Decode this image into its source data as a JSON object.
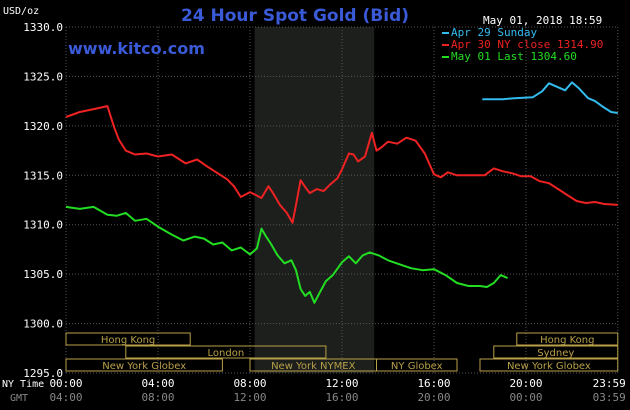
{
  "chart_data": {
    "type": "line",
    "title": "24 Hour Spot Gold (Bid)",
    "subtitle": "www.kitco.com",
    "timestamp": "May 01, 2018 18:59",
    "y_unit_label": "USD/oz",
    "ylim": [
      1295,
      1330
    ],
    "y_ticks": [
      "1330.0",
      "1325.0",
      "1320.0",
      "1315.0",
      "1310.0",
      "1305.0",
      "1300.0",
      "1295.0"
    ],
    "x_axis_label_ny": "NY Time",
    "x_axis_label_gmt": "GMT",
    "x_ticks_ny": [
      "00:00",
      "04:00",
      "08:00",
      "12:00",
      "16:00",
      "20:00",
      "23:59"
    ],
    "x_ticks_gmt": [
      "04:00",
      "08:00",
      "12:00",
      "16:00",
      "20:00",
      "00:00",
      "03:59"
    ],
    "shaded_region_hours": [
      8.2,
      13.4
    ],
    "legend_position": "top-right",
    "colors": {
      "background": "#000000",
      "grid": "#555555",
      "title": "#3a5ad8",
      "url": "#3a5ad8",
      "shade": "#1c1f1c",
      "session_box": "#b8a048"
    },
    "series": [
      {
        "name": "Apr 29 Sunday",
        "color": "#33bbee",
        "x": [
          18.1,
          19.0,
          19.5,
          20.3,
          20.7,
          21.0,
          21.3,
          21.7,
          22.0,
          22.3,
          22.7,
          23.0,
          23.3,
          23.7,
          23.99
        ],
        "y": [
          1322.7,
          1322.7,
          1322.8,
          1322.9,
          1323.5,
          1324.3,
          1324.0,
          1323.6,
          1324.4,
          1323.8,
          1322.8,
          1322.5,
          1322.0,
          1321.4,
          1321.3
        ]
      },
      {
        "name": "Apr 30 NY close 1314.90",
        "color": "#ee2222",
        "x": [
          0.0,
          0.6,
          1.2,
          1.8,
          2.1,
          2.3,
          2.6,
          3.0,
          3.5,
          4.0,
          4.6,
          5.2,
          5.7,
          6.2,
          6.6,
          7.0,
          7.3,
          7.6,
          8.0,
          8.5,
          8.8,
          9.0,
          9.3,
          9.6,
          9.85,
          10.0,
          10.2,
          10.4,
          10.6,
          10.9,
          11.2,
          11.5,
          11.8,
          12.0,
          12.3,
          12.5,
          12.7,
          13.0,
          13.3,
          13.5,
          13.7,
          14.0,
          14.4,
          14.8,
          15.2,
          15.6,
          16.0,
          16.3,
          16.6,
          17.0,
          17.4,
          17.8,
          18.2,
          18.6,
          19.0,
          19.4,
          19.8,
          20.2,
          20.6,
          21.0,
          21.4,
          21.8,
          22.2,
          22.6,
          23.0,
          23.4,
          23.99
        ],
        "y": [
          1320.9,
          1321.4,
          1321.7,
          1322.0,
          1319.8,
          1318.6,
          1317.5,
          1317.1,
          1317.2,
          1316.9,
          1317.1,
          1316.2,
          1316.6,
          1315.8,
          1315.2,
          1314.6,
          1313.9,
          1312.8,
          1313.3,
          1312.7,
          1313.9,
          1313.2,
          1312.0,
          1311.2,
          1310.2,
          1312.0,
          1314.5,
          1313.8,
          1313.2,
          1313.6,
          1313.4,
          1314.1,
          1314.7,
          1315.6,
          1317.2,
          1317.1,
          1316.4,
          1316.9,
          1319.3,
          1317.5,
          1317.8,
          1318.4,
          1318.2,
          1318.8,
          1318.5,
          1317.2,
          1315.1,
          1314.8,
          1315.3,
          1315.0,
          1315.0,
          1315.0,
          1315.0,
          1315.7,
          1315.4,
          1315.2,
          1314.9,
          1314.9,
          1314.4,
          1314.2,
          1313.6,
          1313.0,
          1312.4,
          1312.2,
          1312.3,
          1312.1,
          1312.0
        ]
      },
      {
        "name": "May 01 Last 1304.60",
        "color": "#22dd22",
        "x": [
          0.0,
          0.6,
          1.2,
          1.8,
          2.2,
          2.6,
          3.0,
          3.5,
          4.0,
          4.6,
          5.1,
          5.6,
          6.0,
          6.4,
          6.8,
          7.2,
          7.6,
          8.0,
          8.3,
          8.5,
          8.7,
          8.9,
          9.2,
          9.5,
          9.8,
          10.0,
          10.2,
          10.4,
          10.6,
          10.8,
          11.0,
          11.3,
          11.6,
          12.0,
          12.3,
          12.6,
          12.9,
          13.2,
          13.6,
          14.0,
          14.5,
          15.0,
          15.5,
          16.0,
          16.5,
          17.0,
          17.5,
          18.0,
          18.3,
          18.6,
          18.9,
          19.2
        ],
        "y": [
          1311.8,
          1311.6,
          1311.8,
          1311.0,
          1310.9,
          1311.2,
          1310.4,
          1310.6,
          1309.8,
          1309.0,
          1308.4,
          1308.8,
          1308.6,
          1308.0,
          1308.2,
          1307.4,
          1307.7,
          1307.0,
          1307.6,
          1309.6,
          1308.8,
          1308.1,
          1306.9,
          1306.1,
          1306.4,
          1305.4,
          1303.5,
          1302.8,
          1303.2,
          1302.1,
          1303.0,
          1304.3,
          1304.9,
          1306.2,
          1306.8,
          1306.1,
          1306.9,
          1307.2,
          1306.9,
          1306.4,
          1306.0,
          1305.6,
          1305.4,
          1305.5,
          1304.9,
          1304.1,
          1303.8,
          1303.8,
          1303.7,
          1304.1,
          1304.9,
          1304.6
        ]
      }
    ],
    "sessions": [
      {
        "name": "Hong Kong",
        "start": 0.0,
        "end": 5.4,
        "row": 0
      },
      {
        "name": "Hong Kong",
        "start": 19.6,
        "end": 23.99,
        "row": 0
      },
      {
        "name": "London",
        "start": 2.6,
        "end": 11.3,
        "row": 1
      },
      {
        "name": "Sydney",
        "start": 18.6,
        "end": 23.99,
        "row": 1
      },
      {
        "name": "New York Globex",
        "start": 0.0,
        "end": 6.8,
        "row": 2
      },
      {
        "name": "New York NYMEX",
        "start": 8.0,
        "end": 13.5,
        "row": 2
      },
      {
        "name": "NY Globex",
        "start": 13.5,
        "end": 17.0,
        "row": 2
      },
      {
        "name": "New York Globex",
        "start": 18.0,
        "end": 23.99,
        "row": 2
      }
    ]
  }
}
